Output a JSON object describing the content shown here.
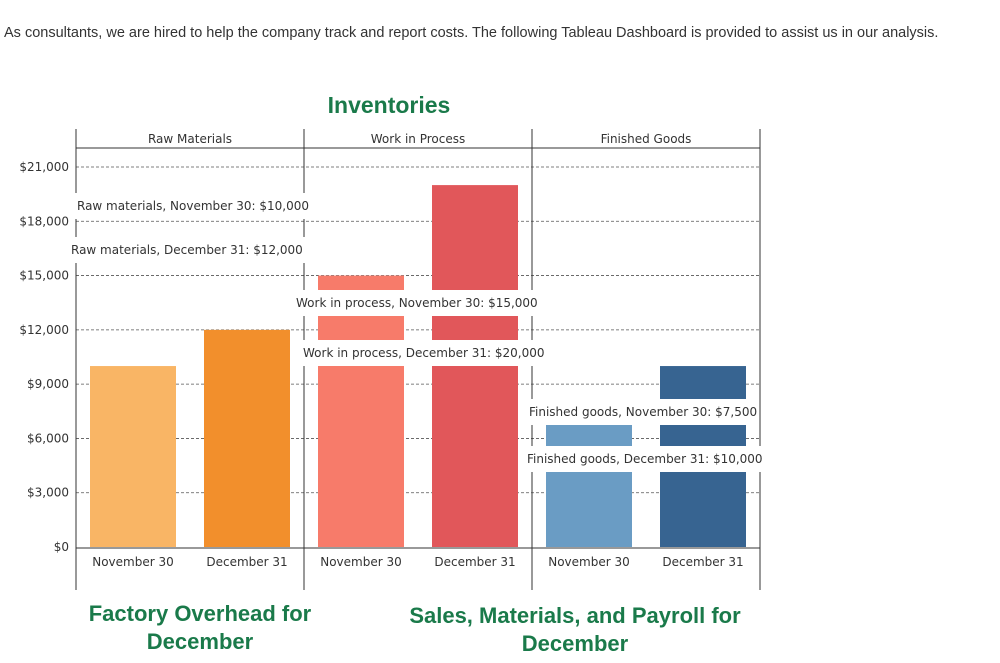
{
  "intro_text": "As consultants, we are hired to help the company track and report costs. The following Tableau Dashboard is provided to assist us in our analysis.",
  "subtitles": {
    "left": "Factory Overhead for December",
    "right": "Sales, Materials, and Payroll for December"
  },
  "colors": {
    "title": "#1a7a4a",
    "raw_nov": "#f9b565",
    "raw_dec": "#f28f2c",
    "wip_nov": "#f77b6a",
    "wip_dec": "#e1575a",
    "fg_nov": "#6a9cc4",
    "fg_dec": "#376491"
  },
  "chart_data": {
    "type": "bar",
    "title": "Inventories",
    "ylim": [
      0,
      22000
    ],
    "yticks": [
      0,
      3000,
      6000,
      9000,
      12000,
      15000,
      18000,
      21000
    ],
    "ytick_labels": [
      "$0",
      "$3,000",
      "$6,000",
      "$9,000",
      "$12,000",
      "$15,000",
      "$18,000",
      "$21,000"
    ],
    "grid": true,
    "panels": [
      {
        "name": "Raw Materials",
        "categories": [
          "November 30",
          "December 31"
        ],
        "values": [
          10000,
          12000
        ],
        "annotations": [
          "Raw materials, November 30: $10,000",
          "Raw materials, December 31: $12,000"
        ]
      },
      {
        "name": "Work in Process",
        "categories": [
          "November 30",
          "December 31"
        ],
        "values": [
          15000,
          20000
        ],
        "annotations": [
          "Work in process, November 30: $15,000",
          "Work in process, December 31: $20,000"
        ]
      },
      {
        "name": "Finished Goods",
        "categories": [
          "November 30",
          "December 31"
        ],
        "values": [
          7500,
          10000
        ],
        "annotations": [
          "Finished goods, November 30: $7,500",
          "Finished goods, December 31: $10,000"
        ]
      }
    ]
  }
}
